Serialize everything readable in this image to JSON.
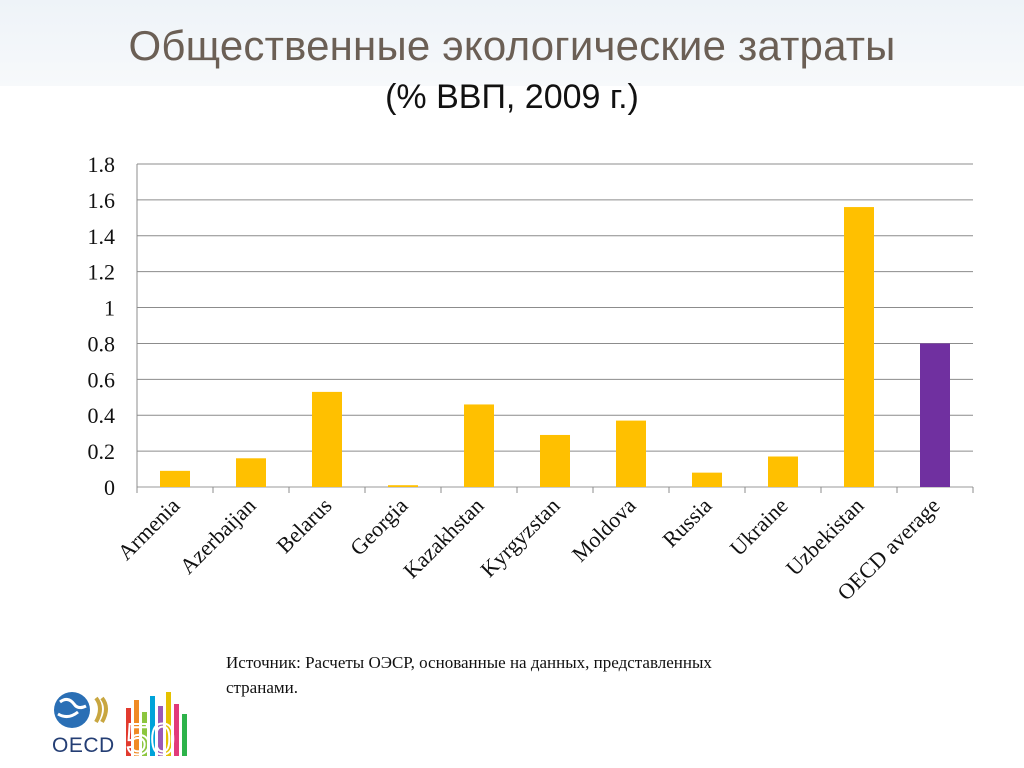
{
  "slide": {
    "title": "Общественные экологические затраты",
    "subtitle": "(% ВВП, 2009 г.)",
    "source": "Источник: Расчеты ОЭСР, основанные на данных, представленных странами.",
    "logo_text": "OECD",
    "logo_number": "50"
  },
  "chart_data": {
    "type": "bar",
    "title": "",
    "xlabel": "",
    "ylabel": "",
    "categories": [
      "Armenia",
      "Azerbaijan",
      "Belarus",
      "Georgia",
      "Kazakhstan",
      "Kyrgyzstan",
      "Moldova",
      "Russia",
      "Ukraine",
      "Uzbekistan",
      "OECD average"
    ],
    "values": [
      0.09,
      0.16,
      0.53,
      0.01,
      0.46,
      0.29,
      0.37,
      0.08,
      0.17,
      1.56,
      0.8
    ],
    "bar_colors": [
      "#ffc000",
      "#ffc000",
      "#ffc000",
      "#ffc000",
      "#ffc000",
      "#ffc000",
      "#ffc000",
      "#ffc000",
      "#ffc000",
      "#ffc000",
      "#7030a0"
    ],
    "ylim": [
      0,
      1.8
    ],
    "yticks": [
      "0",
      "0.2",
      "0.4",
      "0.6",
      "0.8",
      "1",
      "1.2",
      "1.4",
      "1.6",
      "1.8"
    ],
    "ytick_values": [
      0,
      0.2,
      0.4,
      0.6,
      0.8,
      1,
      1.2,
      1.4,
      1.6,
      1.8
    ],
    "grid": true,
    "legend": "none"
  }
}
